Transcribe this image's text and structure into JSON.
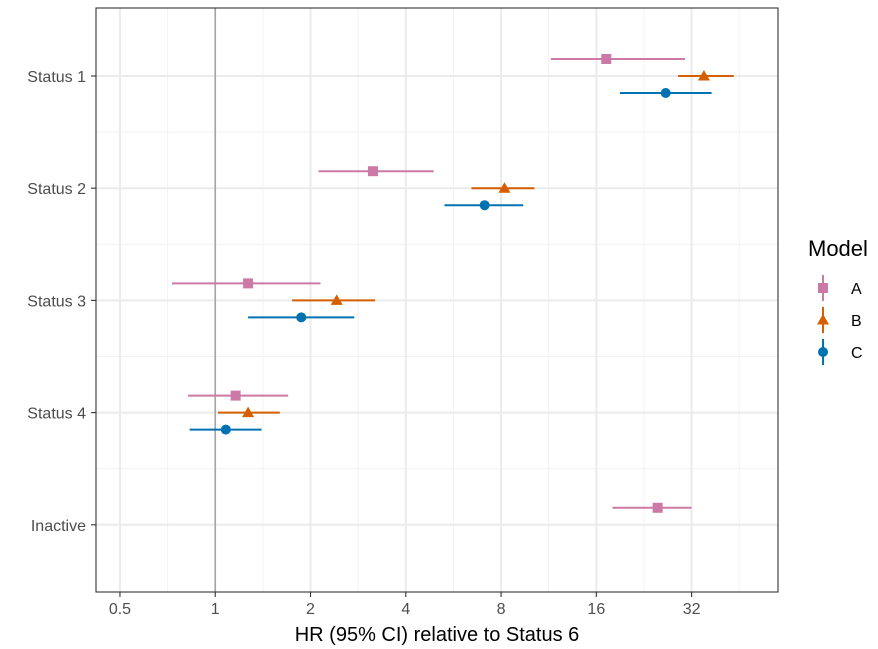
{
  "chart_data": {
    "type": "forest",
    "xlabel": "HR (95% CI) relative to Status 6",
    "ylabel": "",
    "x_scale": "log2",
    "xlim": [
      0.42,
      60
    ],
    "x_ticks": [
      {
        "value": 0.5,
        "label": "0.5"
      },
      {
        "value": 1,
        "label": "1"
      },
      {
        "value": 2,
        "label": "2"
      },
      {
        "value": 4,
        "label": "4"
      },
      {
        "value": 8,
        "label": "8"
      },
      {
        "value": 16,
        "label": "16"
      },
      {
        "value": 32,
        "label": "32"
      }
    ],
    "reference_line": 1,
    "categories": [
      "Status 1",
      "Status 2",
      "Status 3",
      "Status 4",
      "Inactive"
    ],
    "grid": true,
    "legend": {
      "title": "Model",
      "position": "right"
    },
    "series": [
      {
        "name": "A",
        "marker": "square",
        "color": "#CC79A7",
        "points": [
          {
            "category": "Status 1",
            "hr": 17.2,
            "lower": 11.5,
            "upper": 30.5
          },
          {
            "category": "Status 2",
            "hr": 3.15,
            "lower": 2.12,
            "upper": 4.9
          },
          {
            "category": "Status 3",
            "hr": 1.27,
            "lower": 0.73,
            "upper": 2.15
          },
          {
            "category": "Status 4",
            "hr": 1.16,
            "lower": 0.82,
            "upper": 1.7
          },
          {
            "category": "Inactive",
            "hr": 25.0,
            "lower": 18.0,
            "upper": 32.0
          }
        ]
      },
      {
        "name": "B",
        "marker": "triangle",
        "color": "#D55E00",
        "points": [
          {
            "category": "Status 1",
            "hr": 35.0,
            "lower": 29.0,
            "upper": 43.5
          },
          {
            "category": "Status 2",
            "hr": 8.2,
            "lower": 6.45,
            "upper": 10.2
          },
          {
            "category": "Status 3",
            "hr": 2.42,
            "lower": 1.75,
            "upper": 3.2
          },
          {
            "category": "Status 4",
            "hr": 1.27,
            "lower": 1.02,
            "upper": 1.6
          }
        ]
      },
      {
        "name": "C",
        "marker": "circle",
        "color": "#0072B2",
        "points": [
          {
            "category": "Status 1",
            "hr": 26.5,
            "lower": 19.0,
            "upper": 37.0
          },
          {
            "category": "Status 2",
            "hr": 7.1,
            "lower": 5.3,
            "upper": 9.4
          },
          {
            "category": "Status 3",
            "hr": 1.87,
            "lower": 1.27,
            "upper": 2.75
          },
          {
            "category": "Status 4",
            "hr": 1.08,
            "lower": 0.83,
            "upper": 1.4
          }
        ]
      }
    ]
  }
}
